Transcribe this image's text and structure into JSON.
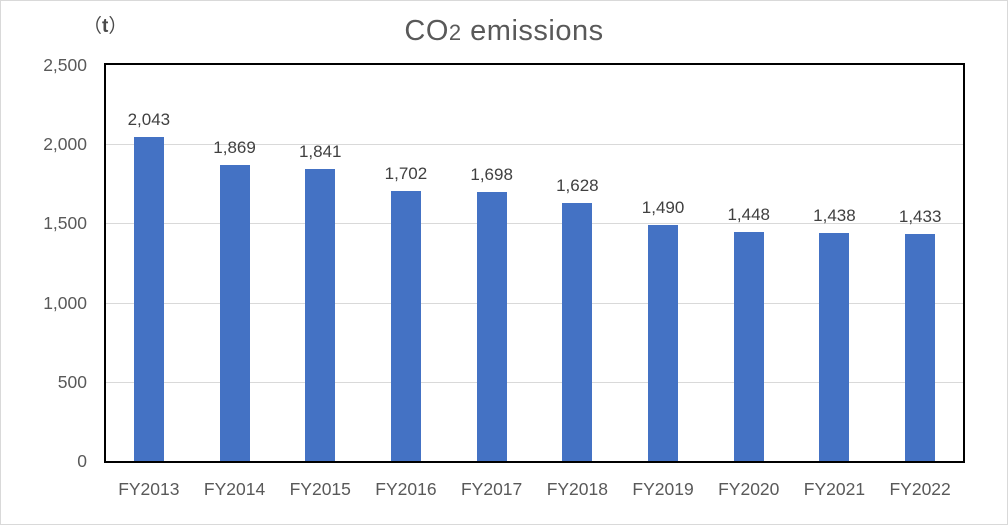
{
  "chart": {
    "title": {
      "main": "CO",
      "subscript": "2",
      "rest": " emissions"
    },
    "unit": {
      "open": "（",
      "symbol": "t",
      "close": "）"
    }
  },
  "chart_data": {
    "type": "bar",
    "title": "CO2 emissions",
    "unit_label": "（t）",
    "categories": [
      "FY2013",
      "FY2014",
      "FY2015",
      "FY2016",
      "FY2017",
      "FY2018",
      "FY2019",
      "FY2020",
      "FY2021",
      "FY2022"
    ],
    "values": [
      2043,
      1869,
      1841,
      1702,
      1698,
      1628,
      1490,
      1448,
      1438,
      1433
    ],
    "data_labels": [
      "2,043",
      "1,869",
      "1,841",
      "1,702",
      "1,698",
      "1,628",
      "1,490",
      "1,448",
      "1,438",
      "1,433"
    ],
    "xlabel": "",
    "ylabel": "(t)",
    "ylim": [
      0,
      2500
    ],
    "ytick_step": 500,
    "ytick_labels": [
      "0",
      "500",
      "1,000",
      "1,500",
      "2,000",
      "2,500"
    ],
    "grid": true,
    "legend": "none",
    "colors": {
      "bar": "#4472C4",
      "title_text": "#595959",
      "axis_text": "#595959",
      "data_label_text": "#404040",
      "gridline": "#d9d9d9",
      "plot_border": "#000000",
      "outer_border": "#d9d9d9"
    }
  }
}
